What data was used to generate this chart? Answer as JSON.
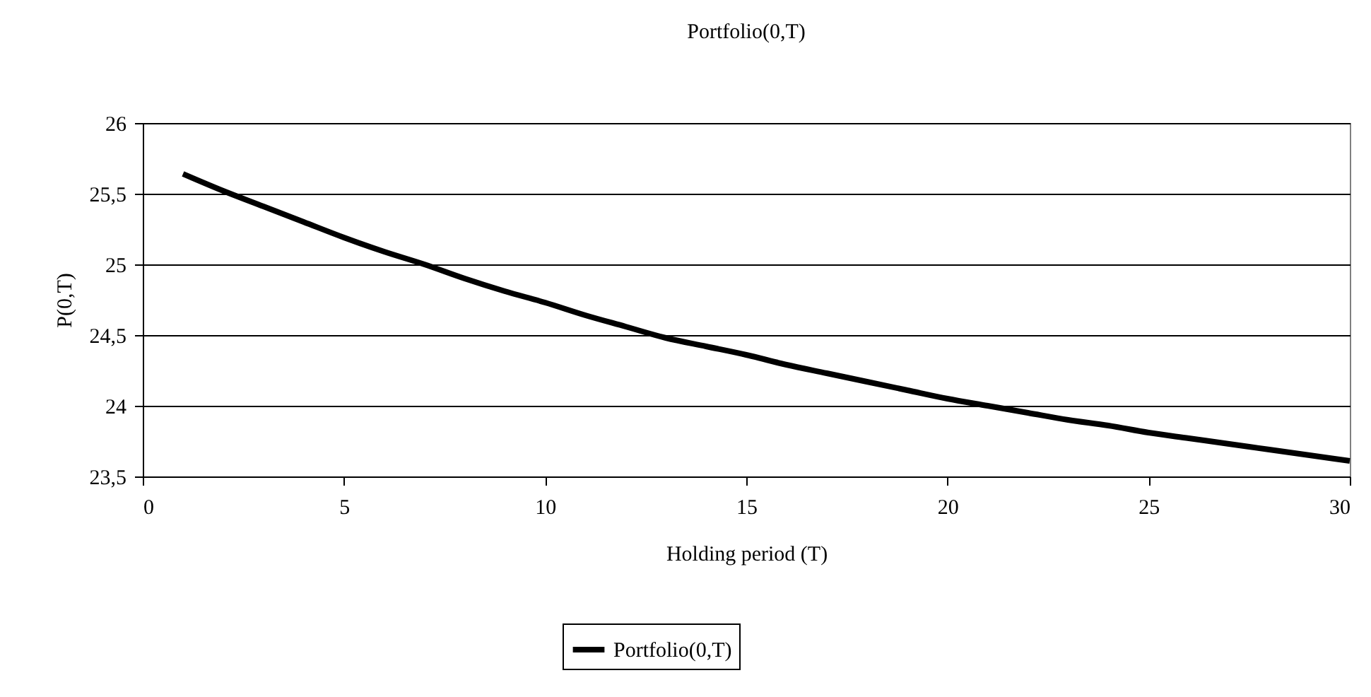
{
  "chart_data": {
    "type": "line",
    "title": "Portfolio(0,T)",
    "xlabel": "Holding period (T)",
    "ylabel": "P(0,T)",
    "x": [
      1,
      2,
      3,
      4,
      5,
      6,
      7,
      8,
      9,
      10,
      11,
      12,
      13,
      14,
      15,
      16,
      17,
      18,
      19,
      20,
      21,
      22,
      23,
      24,
      25,
      26,
      27,
      28,
      29,
      30
    ],
    "series": [
      {
        "name": "Portfolio(0,T)",
        "color": "#000000",
        "values": [
          25.64,
          25.52,
          25.41,
          25.3,
          25.19,
          25.09,
          25.0,
          24.9,
          24.81,
          24.73,
          24.64,
          24.56,
          24.48,
          24.42,
          24.36,
          24.29,
          24.23,
          24.17,
          24.11,
          24.05,
          24.0,
          23.95,
          23.9,
          23.86,
          23.81,
          23.77,
          23.73,
          23.69,
          23.65,
          23.61
        ]
      }
    ],
    "xlim": [
      0,
      30
    ],
    "xticks": [
      0,
      5,
      10,
      15,
      20,
      25,
      30
    ],
    "ylim": [
      23.5,
      26
    ],
    "yticks": [
      {
        "value": 23.5,
        "label": "23,5"
      },
      24,
      {
        "value": 24.5,
        "label": "24,5"
      },
      25,
      {
        "value": 25.5,
        "label": "25,5"
      },
      26
    ],
    "grid": "y",
    "legend": "bottom",
    "marker": "none",
    "line_style": "solid"
  }
}
